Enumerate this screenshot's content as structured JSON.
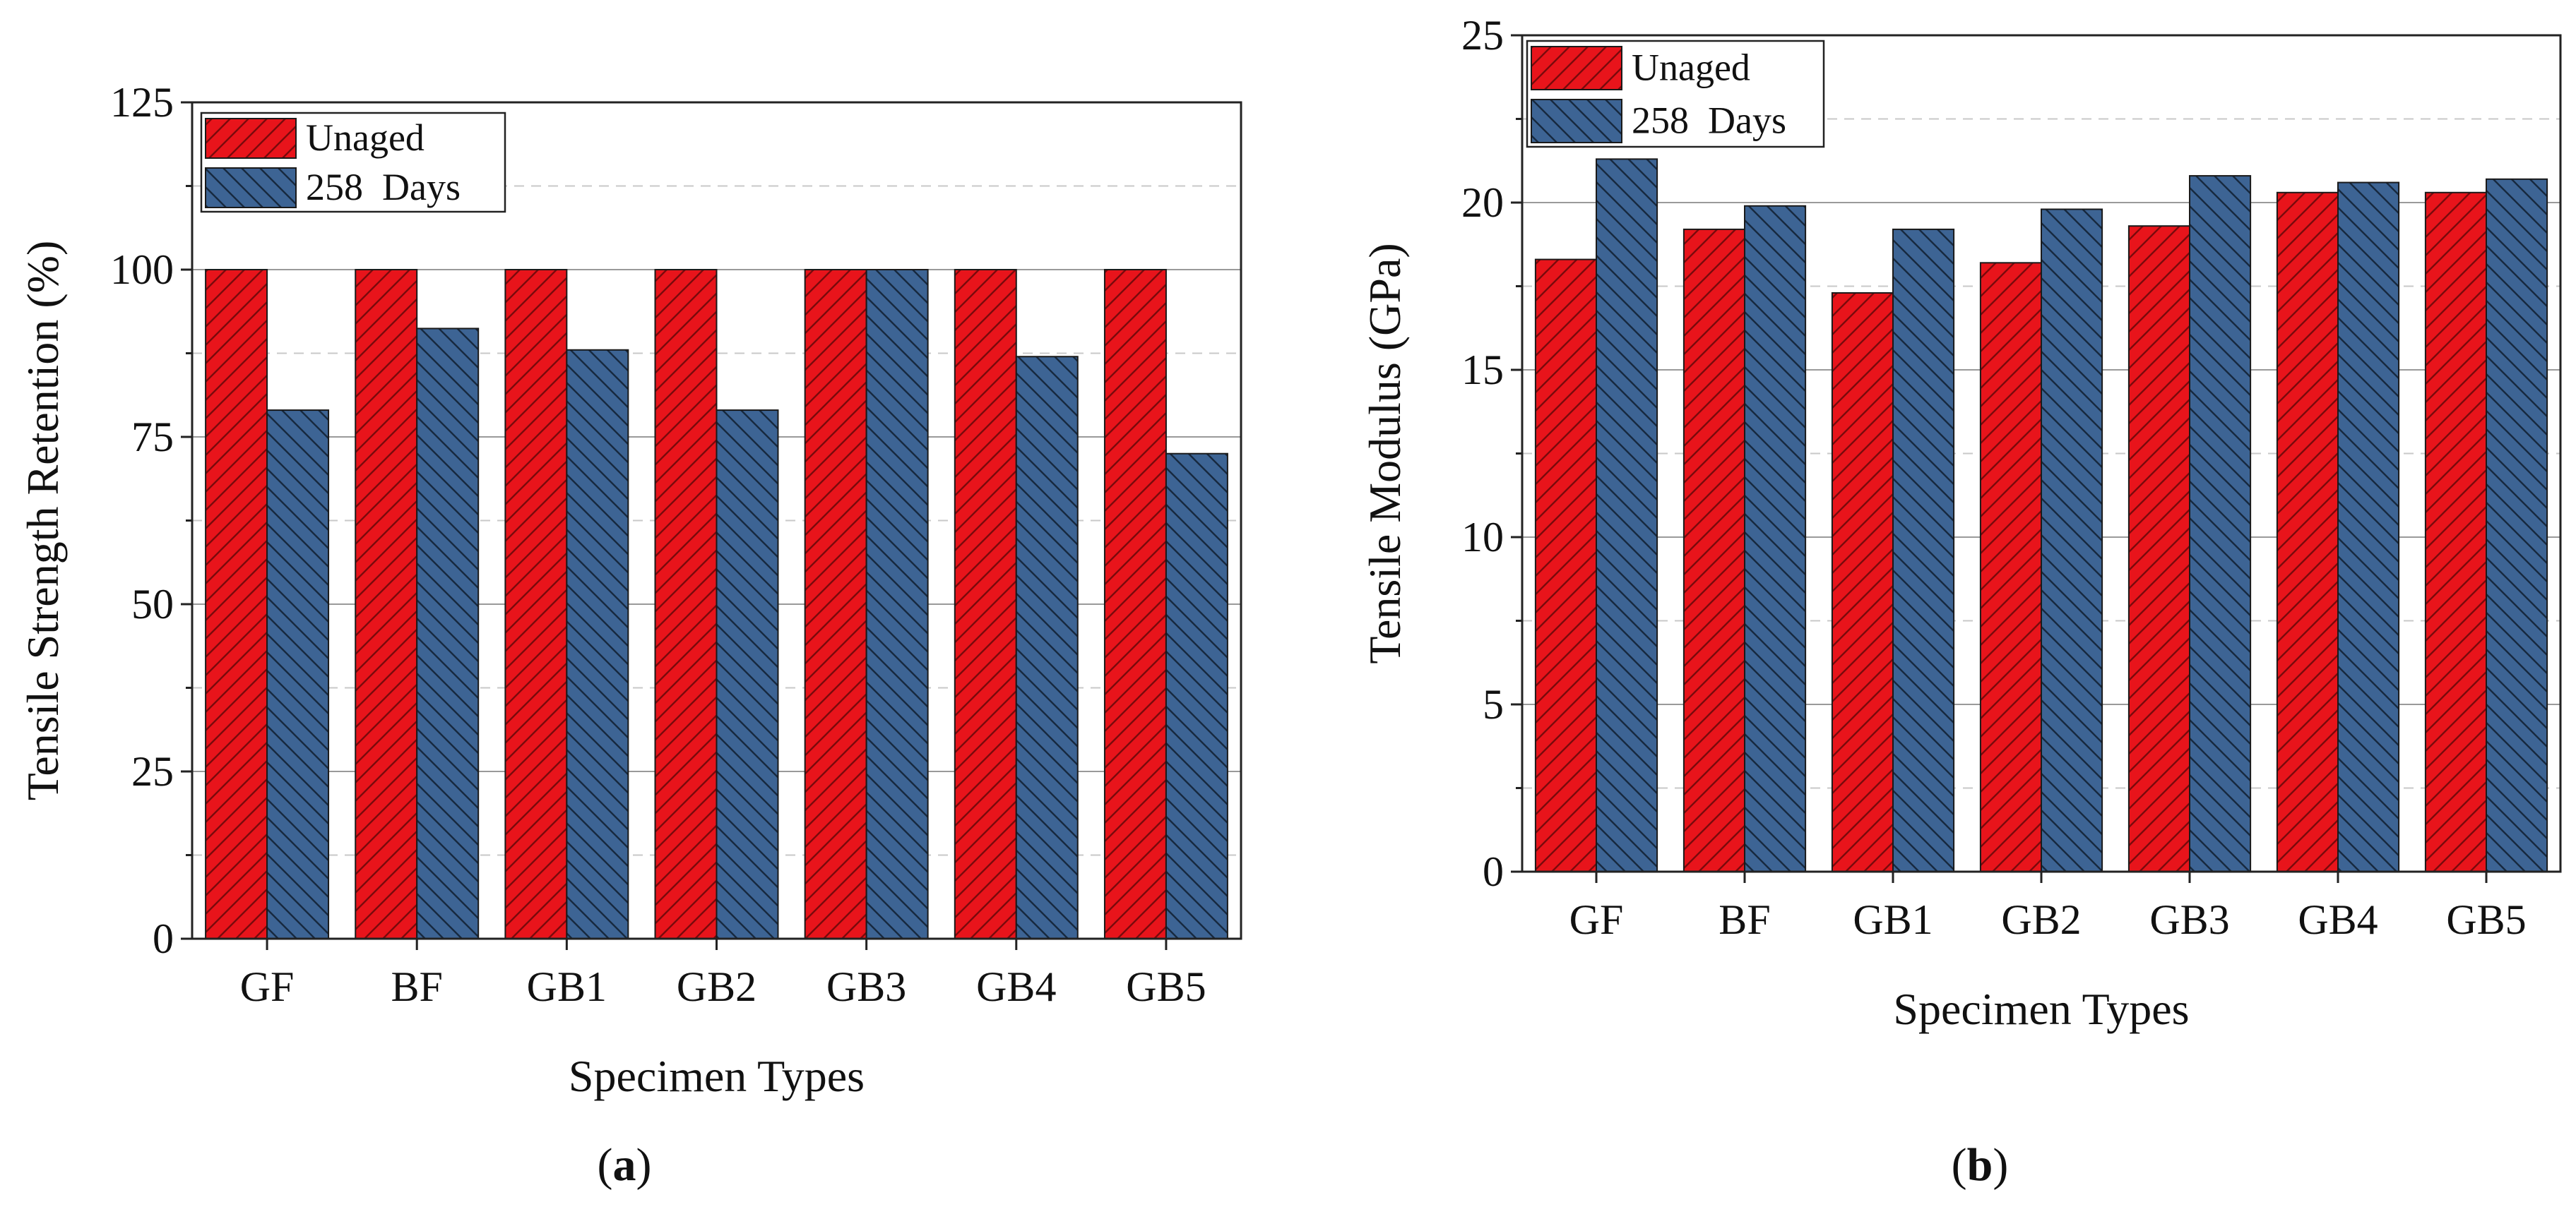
{
  "figure": {
    "panels": [
      "a",
      "b"
    ]
  },
  "colors": {
    "unaged_fill": "#e8141b",
    "unaged_hatch": "#7a0a0c",
    "aged_fill": "#3d6494",
    "aged_hatch": "#17293f",
    "grid_major": "#9a9a9a",
    "grid_minor": "#c8c8c8",
    "axis": "#222222"
  },
  "chart_data": [
    {
      "type": "bar",
      "panel_label": "a",
      "title": "",
      "xlabel": "Specimen Types",
      "ylabel": "Tensile Strength Retention (%)",
      "categories": [
        "GF",
        "BF",
        "GB1",
        "GB2",
        "GB3",
        "GB4",
        "GB5"
      ],
      "series": [
        {
          "name": "Unaged",
          "values": [
            100,
            100,
            100,
            100,
            100,
            100,
            100
          ]
        },
        {
          "name": "258  Days",
          "values": [
            79,
            91.2,
            88,
            79,
            100,
            87,
            72.5
          ]
        }
      ],
      "ylim": [
        0,
        125
      ],
      "yticks": [
        0,
        25,
        50,
        75,
        100,
        125
      ],
      "ytick_labels": [
        "0",
        "25",
        "50",
        "75",
        "100",
        "125"
      ],
      "minor_step": 12.5,
      "grid": true,
      "legend_position": "top-left"
    },
    {
      "type": "bar",
      "panel_label": "b",
      "title": "",
      "xlabel": "Specimen Types",
      "ylabel": "Tensile Modulus (GPa)",
      "categories": [
        "GF",
        "BF",
        "GB1",
        "GB2",
        "GB3",
        "GB4",
        "GB5"
      ],
      "series": [
        {
          "name": "Unaged",
          "values": [
            18.3,
            19.2,
            17.3,
            18.2,
            19.3,
            20.3,
            20.3
          ]
        },
        {
          "name": "258  Days",
          "values": [
            21.3,
            19.9,
            19.2,
            19.8,
            20.8,
            20.6,
            20.7
          ]
        }
      ],
      "ylim": [
        0,
        25
      ],
      "yticks": [
        0,
        5,
        10,
        15,
        20,
        25
      ],
      "ytick_labels": [
        "0",
        "5",
        "10",
        "15",
        "20",
        "25"
      ],
      "minor_step": 2.5,
      "grid": true,
      "legend_position": "top-left"
    }
  ]
}
